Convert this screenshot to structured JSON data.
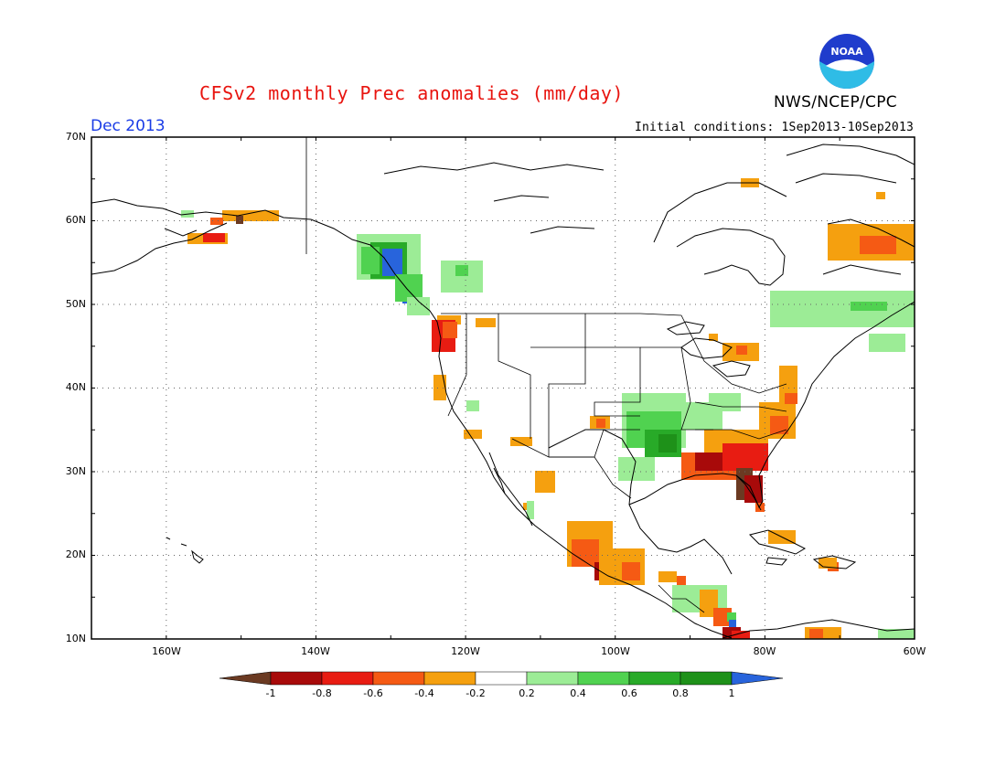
{
  "header": {
    "title": "CFSv2 monthly Prec anomalies (mm/day)",
    "agency": "NWS/NCEP/CPC",
    "logo_text": "NOAA",
    "month": "Dec 2013",
    "initial_conditions": "Initial conditions: 1Sep2013-10Sep2013"
  },
  "axes": {
    "lat_labels": [
      "70N",
      "60N",
      "50N",
      "40N",
      "30N",
      "20N",
      "10N"
    ],
    "lon_labels": [
      "160W",
      "140W",
      "120W",
      "100W",
      "80W",
      "60W"
    ],
    "lat_range": [
      10,
      70
    ],
    "lon_range": [
      -170,
      -60
    ]
  },
  "colorbar": {
    "labels": [
      "-1",
      "-0.8",
      "-0.6",
      "-0.4",
      "-0.2",
      "0.2",
      "0.4",
      "0.6",
      "0.8",
      "1"
    ],
    "colors": [
      "#6b3a22",
      "#a80a0a",
      "#e81c12",
      "#f55a14",
      "#f5a00f",
      "#ffffff",
      "#9cec96",
      "#50d250",
      "#28aa28",
      "#1e9119",
      "#2864dc"
    ]
  }
}
